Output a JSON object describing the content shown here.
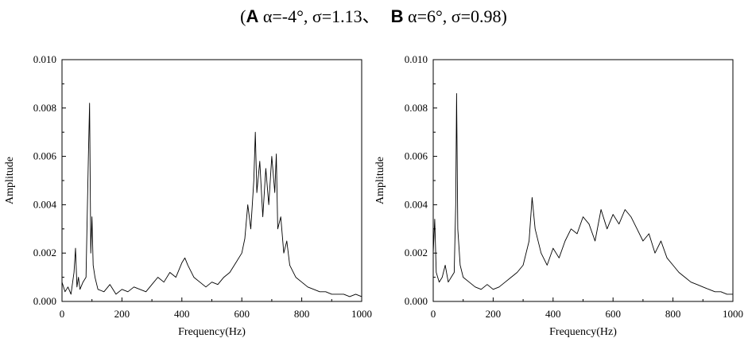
{
  "caption": {
    "open": "(",
    "label_a": "A",
    "text_a": " α=-4°, σ=1.13、",
    "label_b": "B",
    "text_b": " α=6°, σ=0.98)"
  },
  "chart_data": [
    {
      "type": "line",
      "panel": "A",
      "xlabel": "Frequency(Hz)",
      "ylabel": "Amplitude",
      "xlim": [
        0,
        1000
      ],
      "ylim": [
        0,
        0.01
      ],
      "xticks": [
        "0",
        "200",
        "400",
        "600",
        "800",
        "1000"
      ],
      "yticks": [
        "0.000",
        "0.002",
        "0.004",
        "0.006",
        "0.008",
        "0.010"
      ],
      "grid": false,
      "series": [
        {
          "x": [
            0,
            10,
            20,
            30,
            40,
            45,
            50,
            55,
            60,
            70,
            80,
            88,
            92,
            96,
            100,
            104,
            110,
            120,
            140,
            160,
            180,
            200,
            220,
            240,
            260,
            280,
            300,
            320,
            340,
            360,
            380,
            400,
            410,
            420,
            440,
            460,
            480,
            500,
            520,
            540,
            560,
            580,
            600,
            610,
            620,
            630,
            640,
            645,
            650,
            660,
            670,
            680,
            690,
            700,
            710,
            715,
            720,
            730,
            740,
            750,
            760,
            780,
            800,
            820,
            840,
            860,
            880,
            900,
            920,
            940,
            960,
            980,
            1000
          ],
          "y": [
            0.0008,
            0.0004,
            0.0006,
            0.0003,
            0.0012,
            0.0022,
            0.0006,
            0.001,
            0.0005,
            0.0008,
            0.001,
            0.006,
            0.0082,
            0.002,
            0.0035,
            0.0015,
            0.001,
            0.0005,
            0.0004,
            0.0007,
            0.0003,
            0.0005,
            0.0004,
            0.0006,
            0.0005,
            0.0004,
            0.0007,
            0.001,
            0.0008,
            0.0012,
            0.001,
            0.0016,
            0.0018,
            0.0015,
            0.001,
            0.0008,
            0.0006,
            0.0008,
            0.0007,
            0.001,
            0.0012,
            0.0016,
            0.002,
            0.0026,
            0.004,
            0.003,
            0.005,
            0.007,
            0.0045,
            0.0058,
            0.0035,
            0.0055,
            0.004,
            0.006,
            0.0045,
            0.0061,
            0.003,
            0.0035,
            0.002,
            0.0025,
            0.0015,
            0.001,
            0.0008,
            0.0006,
            0.0005,
            0.0004,
            0.0004,
            0.0003,
            0.0003,
            0.0003,
            0.0002,
            0.0003,
            0.0002
          ]
        }
      ]
    },
    {
      "type": "line",
      "panel": "B",
      "xlabel": "Frequency(Hz)",
      "ylabel": "Amplitude",
      "xlim": [
        0,
        1000
      ],
      "ylim": [
        0,
        0.01
      ],
      "xticks": [
        "0",
        "200",
        "400",
        "600",
        "800",
        "1000"
      ],
      "yticks": [
        "0.000",
        "0.002",
        "0.004",
        "0.006",
        "0.008",
        "0.010"
      ],
      "grid": false,
      "series": [
        {
          "x": [
            0,
            5,
            10,
            20,
            30,
            40,
            50,
            60,
            70,
            75,
            78,
            82,
            90,
            100,
            120,
            140,
            160,
            180,
            200,
            220,
            240,
            260,
            280,
            300,
            320,
            330,
            340,
            360,
            380,
            400,
            420,
            440,
            460,
            480,
            500,
            520,
            540,
            560,
            580,
            600,
            620,
            640,
            660,
            680,
            700,
            720,
            740,
            760,
            780,
            800,
            820,
            840,
            860,
            880,
            900,
            920,
            940,
            960,
            980,
            1000
          ],
          "y": [
            0.002,
            0.0034,
            0.0012,
            0.0008,
            0.001,
            0.0015,
            0.0008,
            0.001,
            0.0012,
            0.004,
            0.0086,
            0.003,
            0.0015,
            0.001,
            0.0008,
            0.0006,
            0.0005,
            0.0007,
            0.0005,
            0.0006,
            0.0008,
            0.001,
            0.0012,
            0.0015,
            0.0025,
            0.0043,
            0.003,
            0.002,
            0.0015,
            0.0022,
            0.0018,
            0.0025,
            0.003,
            0.0028,
            0.0035,
            0.0032,
            0.0025,
            0.0038,
            0.003,
            0.0036,
            0.0032,
            0.0038,
            0.0035,
            0.003,
            0.0025,
            0.0028,
            0.002,
            0.0025,
            0.0018,
            0.0015,
            0.0012,
            0.001,
            0.0008,
            0.0007,
            0.0006,
            0.0005,
            0.0004,
            0.0004,
            0.0003,
            0.0003
          ]
        }
      ]
    }
  ]
}
